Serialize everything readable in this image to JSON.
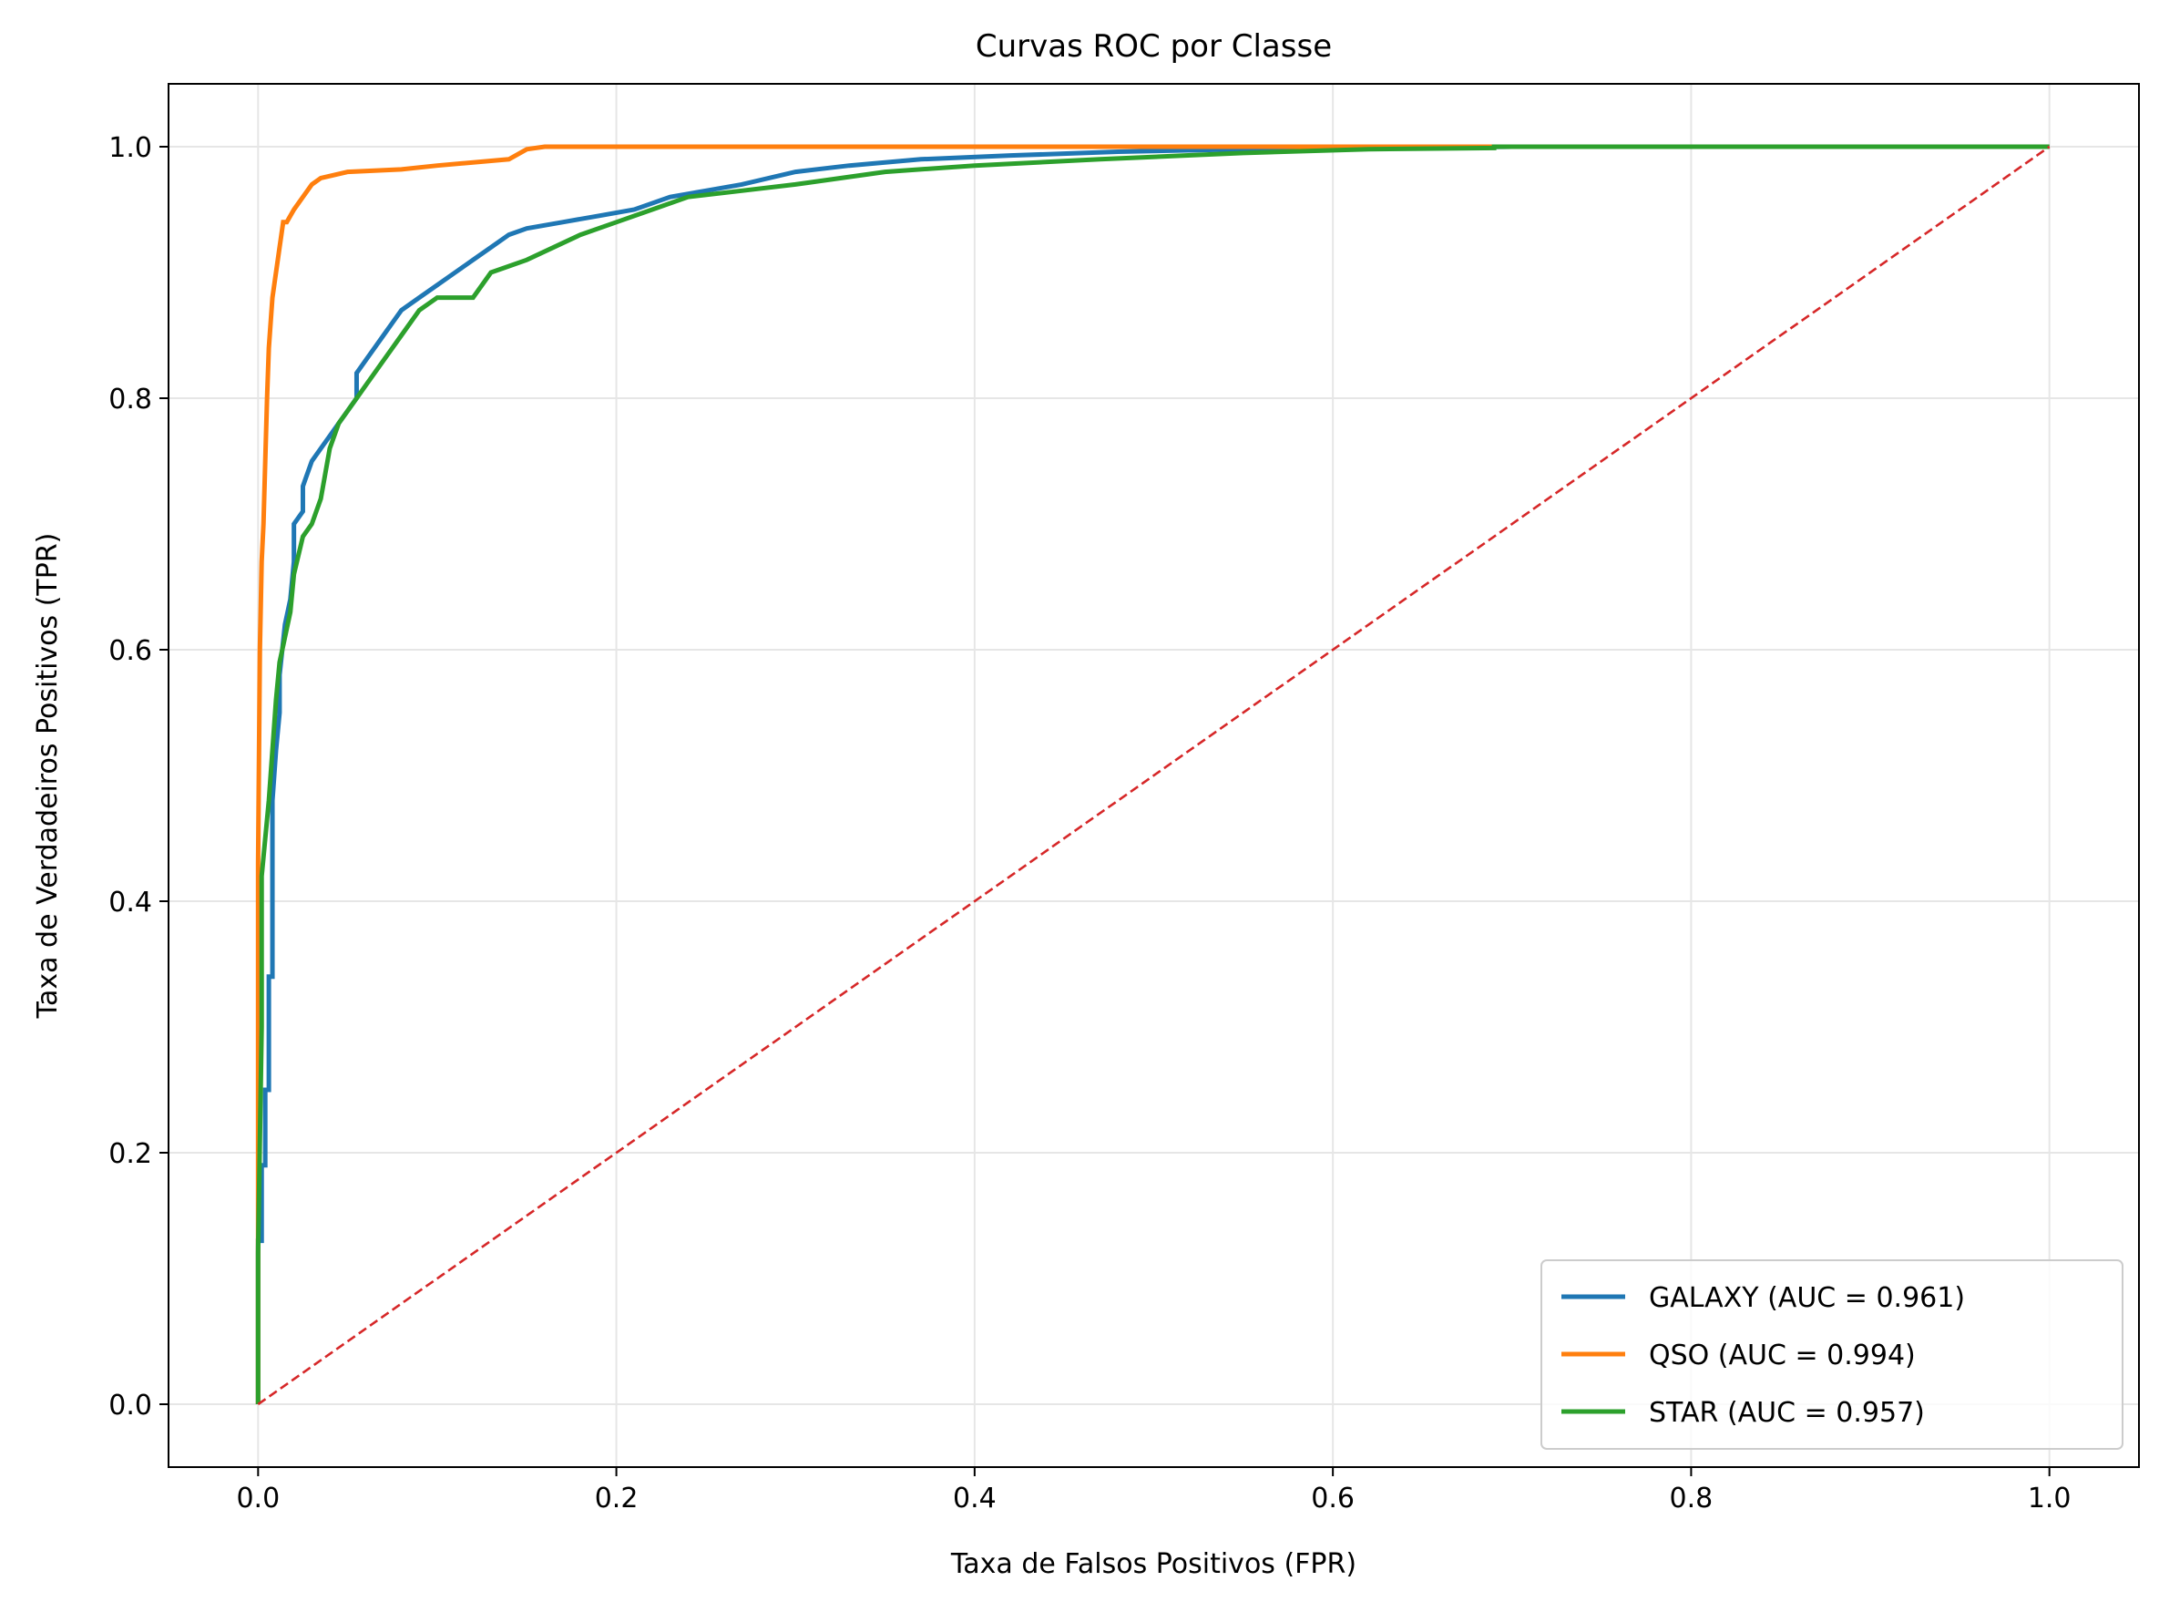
{
  "chart_data": {
    "type": "line",
    "title": "Curvas ROC por Classe",
    "xlabel": "Taxa de Falsos Positivos (FPR)",
    "ylabel": "Taxa de Verdadeiros Positivos (TPR)",
    "xlim": [
      -0.05,
      1.05
    ],
    "ylim": [
      -0.05,
      1.05
    ],
    "xticks": [
      0.0,
      0.2,
      0.4,
      0.6,
      0.8,
      1.0
    ],
    "yticks": [
      0.0,
      0.2,
      0.4,
      0.6,
      0.8,
      1.0
    ],
    "xtick_labels": [
      "0.0",
      "0.2",
      "0.4",
      "0.6",
      "0.8",
      "1.0"
    ],
    "ytick_labels": [
      "0.0",
      "0.2",
      "0.4",
      "0.6",
      "0.8",
      "1.0"
    ],
    "grid": true,
    "legend_position": "bottom-right",
    "series": [
      {
        "name": "GALAXY (AUC = 0.961)",
        "color": "#1f77b4",
        "x": [
          0.0,
          0.0,
          0.002,
          0.002,
          0.004,
          0.004,
          0.006,
          0.006,
          0.008,
          0.008,
          0.01,
          0.012,
          0.012,
          0.015,
          0.018,
          0.02,
          0.02,
          0.025,
          0.025,
          0.03,
          0.035,
          0.04,
          0.045,
          0.05,
          0.055,
          0.055,
          0.06,
          0.065,
          0.07,
          0.075,
          0.08,
          0.09,
          0.1,
          0.11,
          0.12,
          0.13,
          0.14,
          0.15,
          0.17,
          0.19,
          0.21,
          0.23,
          0.25,
          0.27,
          0.3,
          0.33,
          0.37,
          0.42,
          0.48,
          0.55,
          0.62,
          0.7,
          1.0
        ],
        "y": [
          0.0,
          0.13,
          0.13,
          0.19,
          0.19,
          0.25,
          0.25,
          0.34,
          0.34,
          0.48,
          0.52,
          0.55,
          0.58,
          0.62,
          0.64,
          0.67,
          0.7,
          0.71,
          0.73,
          0.75,
          0.76,
          0.77,
          0.78,
          0.79,
          0.8,
          0.82,
          0.83,
          0.84,
          0.85,
          0.86,
          0.87,
          0.88,
          0.89,
          0.9,
          0.91,
          0.92,
          0.93,
          0.935,
          0.94,
          0.945,
          0.95,
          0.96,
          0.965,
          0.97,
          0.98,
          0.985,
          0.99,
          0.993,
          0.996,
          0.998,
          0.999,
          1.0,
          1.0
        ]
      },
      {
        "name": "QSO (AUC = 0.994)",
        "color": "#ff7f0e",
        "x": [
          0.0,
          0.0,
          0.001,
          0.002,
          0.003,
          0.004,
          0.005,
          0.006,
          0.007,
          0.008,
          0.01,
          0.012,
          0.014,
          0.016,
          0.02,
          0.025,
          0.03,
          0.035,
          0.05,
          0.08,
          0.1,
          0.14,
          0.15,
          0.16,
          0.6,
          0.7,
          1.0
        ],
        "y": [
          0.0,
          0.43,
          0.6,
          0.67,
          0.7,
          0.75,
          0.8,
          0.84,
          0.86,
          0.88,
          0.9,
          0.92,
          0.94,
          0.94,
          0.95,
          0.96,
          0.97,
          0.975,
          0.98,
          0.982,
          0.985,
          0.99,
          0.998,
          1.0,
          1.0,
          1.0,
          1.0
        ]
      },
      {
        "name": "STAR (AUC = 0.957)",
        "color": "#2ca02c",
        "x": [
          0.0,
          0.0,
          0.002,
          0.002,
          0.004,
          0.006,
          0.008,
          0.01,
          0.012,
          0.015,
          0.018,
          0.02,
          0.025,
          0.03,
          0.035,
          0.04,
          0.045,
          0.05,
          0.055,
          0.06,
          0.07,
          0.08,
          0.09,
          0.1,
          0.12,
          0.13,
          0.14,
          0.15,
          0.18,
          0.2,
          0.22,
          0.24,
          0.27,
          0.3,
          0.35,
          0.4,
          0.47,
          0.55,
          0.62,
          0.69,
          0.69,
          1.0
        ],
        "y": [
          0.0,
          0.12,
          0.3,
          0.42,
          0.45,
          0.48,
          0.52,
          0.56,
          0.59,
          0.61,
          0.63,
          0.66,
          0.69,
          0.7,
          0.72,
          0.76,
          0.78,
          0.79,
          0.8,
          0.81,
          0.83,
          0.85,
          0.87,
          0.88,
          0.88,
          0.9,
          0.905,
          0.91,
          0.93,
          0.94,
          0.95,
          0.96,
          0.965,
          0.97,
          0.98,
          0.985,
          0.99,
          0.995,
          0.998,
          0.999,
          1.0,
          1.0
        ]
      },
      {
        "name": "",
        "color": "#d62728",
        "style": "dashed",
        "x": [
          0.0,
          1.0
        ],
        "y": [
          0.0,
          1.0
        ]
      }
    ]
  }
}
